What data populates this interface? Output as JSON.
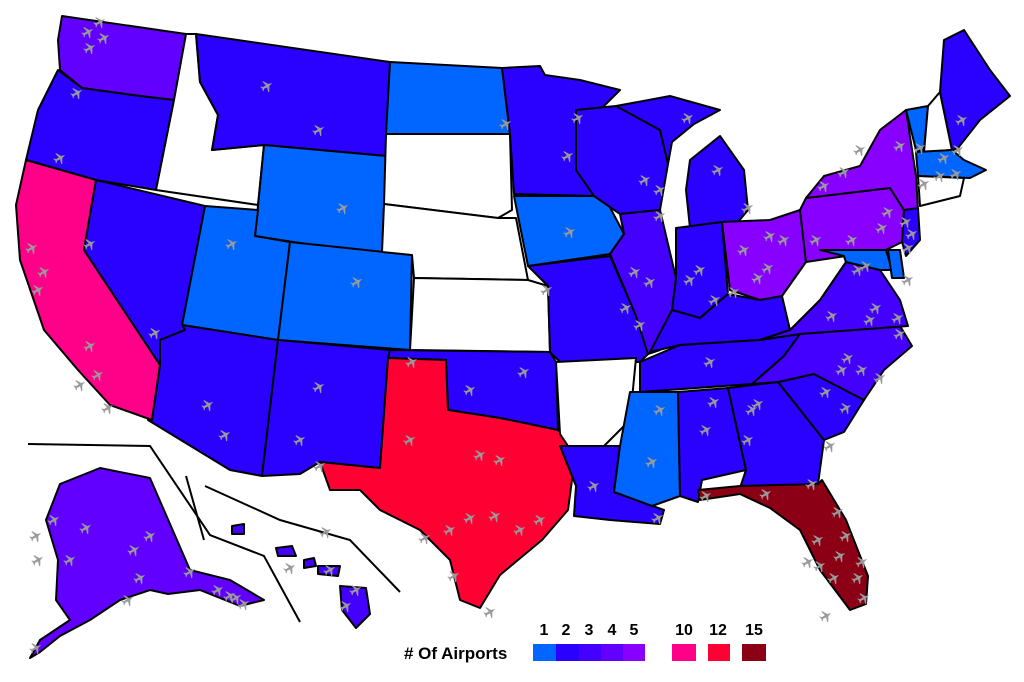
{
  "legend": {
    "title": "# Of Airports",
    "items": [
      {
        "label": "1",
        "color": "#0066ff"
      },
      {
        "label": "2",
        "color": "#2a00ff"
      },
      {
        "label": "3",
        "color": "#4400ff"
      },
      {
        "label": "4",
        "color": "#6200ff"
      },
      {
        "label": "5",
        "color": "#8800ff"
      },
      {
        "label": "10",
        "color": "#ff0088"
      },
      {
        "label": "12",
        "color": "#ff0033"
      },
      {
        "label": "15",
        "color": "#8b0015"
      }
    ]
  },
  "states": [
    {
      "id": "WA",
      "airports": 4
    },
    {
      "id": "OR",
      "airports": 2
    },
    {
      "id": "CA",
      "airports": 10
    },
    {
      "id": "ID",
      "airports": 0
    },
    {
      "id": "NV",
      "airports": 2
    },
    {
      "id": "MT",
      "airports": 2
    },
    {
      "id": "WY",
      "airports": 1
    },
    {
      "id": "UT",
      "airports": 1
    },
    {
      "id": "CO",
      "airports": 1
    },
    {
      "id": "AZ",
      "airports": 2
    },
    {
      "id": "NM",
      "airports": 2
    },
    {
      "id": "ND",
      "airports": 1
    },
    {
      "id": "SD",
      "airports": 0
    },
    {
      "id": "NE",
      "airports": 0
    },
    {
      "id": "KS",
      "airports": 0
    },
    {
      "id": "OK",
      "airports": 2
    },
    {
      "id": "TX",
      "airports": 12
    },
    {
      "id": "MN",
      "airports": 2
    },
    {
      "id": "IA",
      "airports": 1
    },
    {
      "id": "MO",
      "airports": 2
    },
    {
      "id": "AR",
      "airports": 0
    },
    {
      "id": "LA",
      "airports": 2
    },
    {
      "id": "WI",
      "airports": 2
    },
    {
      "id": "IL",
      "airports": 3
    },
    {
      "id": "MI",
      "airports": 2
    },
    {
      "id": "IN",
      "airports": 2
    },
    {
      "id": "OH",
      "airports": 5
    },
    {
      "id": "KY",
      "airports": 2
    },
    {
      "id": "TN",
      "airports": 2
    },
    {
      "id": "MS",
      "airports": 1
    },
    {
      "id": "AL",
      "airports": 2
    },
    {
      "id": "GA",
      "airports": 2
    },
    {
      "id": "FL",
      "airports": 15
    },
    {
      "id": "SC",
      "airports": 2
    },
    {
      "id": "NC",
      "airports": 3
    },
    {
      "id": "VA",
      "airports": 3
    },
    {
      "id": "WV",
      "airports": 0
    },
    {
      "id": "PA",
      "airports": 5
    },
    {
      "id": "NY",
      "airports": 5
    },
    {
      "id": "VT",
      "airports": 1
    },
    {
      "id": "NH",
      "airports": 0
    },
    {
      "id": "ME",
      "airports": 2
    },
    {
      "id": "MA",
      "airports": 1
    },
    {
      "id": "NJ",
      "airports": 2
    },
    {
      "id": "MD",
      "airports": 1
    },
    {
      "id": "DE",
      "airports": 1
    },
    {
      "id": "AK",
      "airports": 4
    },
    {
      "id": "HI",
      "airports": 3
    }
  ]
}
